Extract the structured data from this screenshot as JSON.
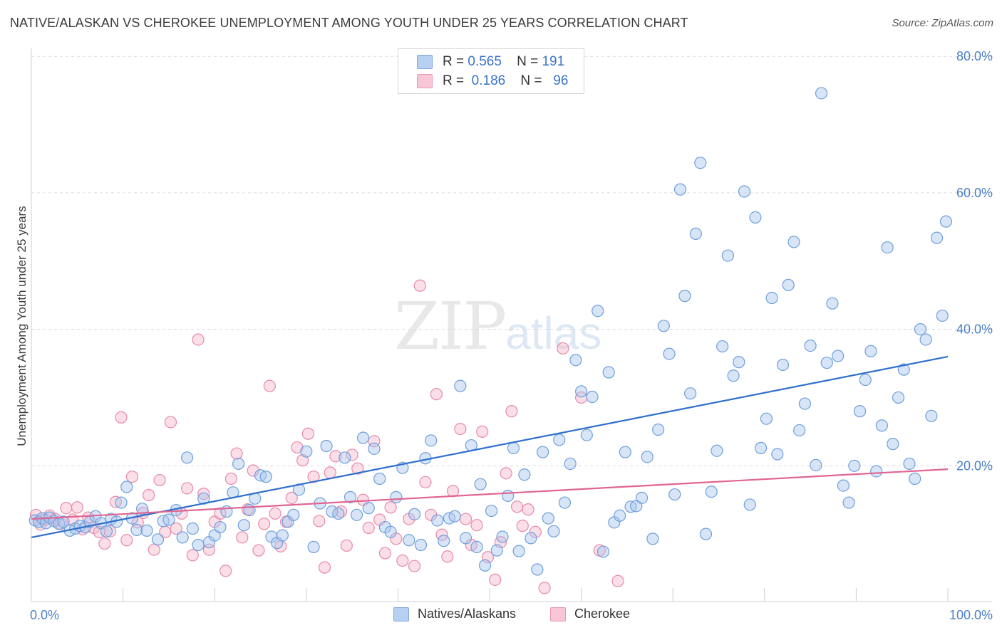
{
  "title": "NATIVE/ALASKAN VS CHEROKEE UNEMPLOYMENT AMONG YOUTH UNDER 25 YEARS CORRELATION CHART",
  "source": "Source: ZipAtlas.com",
  "watermark": {
    "zip": "ZIP",
    "atlas": "atlas"
  },
  "legend": {
    "rows": [
      {
        "r_label": "R =",
        "r_value": "0.565",
        "n_label": "N =",
        "n_value": "191"
      },
      {
        "r_label": "R =",
        "r_value": "0.186",
        "n_label": "N =",
        "n_value": "96"
      }
    ]
  },
  "bottom_legend": {
    "blue": "Natives/Alaskans",
    "pink": "Cherokee"
  },
  "colors": {
    "blue_fill": "#a9c6ee",
    "blue_stroke": "#6f9fdc",
    "blue_line": "#2f6fcc",
    "pink_fill": "#f5b8cc",
    "pink_stroke": "#e889aa",
    "pink_line": "#e06591",
    "tick_text": "#4a7fc8"
  },
  "chart_data": {
    "type": "scatter",
    "title": "NATIVE/ALASKAN VS CHEROKEE UNEMPLOYMENT AMONG YOUTH UNDER 25 YEARS CORRELATION CHART",
    "xlabel": "",
    "ylabel": "Unemployment Among Youth under 25 years",
    "xlim": [
      0,
      100
    ],
    "ylim": [
      0,
      80
    ],
    "grid": "horizontal dashed",
    "x_tick_labels": [
      {
        "value": 0,
        "label": "0.0%"
      },
      {
        "value": 100,
        "label": "100.0%"
      }
    ],
    "y_tick_labels": [
      {
        "value": 20,
        "label": "20.0%"
      },
      {
        "value": 40,
        "label": "40.0%"
      },
      {
        "value": 60,
        "label": "60.0%"
      },
      {
        "value": 80,
        "label": "80.0%"
      }
    ],
    "series": [
      {
        "name": "Natives/Alaskans",
        "trend": {
          "x": [
            0,
            100
          ],
          "y": [
            9.5,
            36.0
          ]
        },
        "points": [
          [
            0.4,
            12.0
          ],
          [
            0.8,
            11.8
          ],
          [
            1.2,
            12.3
          ],
          [
            1.6,
            11.6
          ],
          [
            2.0,
            12.4
          ],
          [
            2.5,
            11.9
          ],
          [
            3.0,
            11.5
          ],
          [
            3.5,
            11.8
          ],
          [
            4.2,
            10.5
          ],
          [
            4.8,
            10.8
          ],
          [
            5.3,
            11.2
          ],
          [
            5.9,
            11.0
          ],
          [
            6.4,
            11.8
          ],
          [
            7.0,
            12.6
          ],
          [
            7.6,
            11.6
          ],
          [
            8.2,
            10.4
          ],
          [
            8.7,
            12.2
          ],
          [
            9.3,
            11.8
          ],
          [
            9.8,
            14.6
          ],
          [
            10.4,
            16.9
          ],
          [
            11.0,
            12.3
          ],
          [
            11.5,
            10.6
          ],
          [
            12.1,
            13.7
          ],
          [
            12.6,
            10.5
          ],
          [
            13.8,
            9.2
          ],
          [
            14.4,
            11.9
          ],
          [
            15.0,
            12.1
          ],
          [
            15.8,
            13.5
          ],
          [
            16.5,
            9.5
          ],
          [
            17.0,
            21.2
          ],
          [
            17.6,
            10.8
          ],
          [
            18.2,
            8.4
          ],
          [
            18.8,
            15.2
          ],
          [
            19.4,
            8.8
          ],
          [
            20.0,
            9.8
          ],
          [
            20.6,
            11.0
          ],
          [
            21.3,
            13.3
          ],
          [
            22.0,
            16.1
          ],
          [
            22.6,
            20.3
          ],
          [
            23.2,
            11.3
          ],
          [
            23.8,
            13.5
          ],
          [
            24.4,
            15.2
          ],
          [
            25.0,
            18.6
          ],
          [
            25.6,
            18.4
          ],
          [
            26.2,
            9.6
          ],
          [
            26.8,
            8.7
          ],
          [
            27.4,
            9.8
          ],
          [
            28.0,
            11.8
          ],
          [
            28.6,
            12.8
          ],
          [
            29.2,
            16.5
          ],
          [
            30.0,
            22.1
          ],
          [
            30.8,
            8.1
          ],
          [
            31.5,
            14.5
          ],
          [
            32.2,
            22.9
          ],
          [
            32.8,
            13.3
          ],
          [
            33.5,
            13.0
          ],
          [
            34.2,
            21.2
          ],
          [
            34.8,
            15.4
          ],
          [
            35.5,
            12.8
          ],
          [
            36.2,
            24.1
          ],
          [
            36.8,
            13.8
          ],
          [
            37.4,
            22.5
          ],
          [
            38.0,
            18.1
          ],
          [
            38.6,
            11.0
          ],
          [
            39.2,
            10.3
          ],
          [
            39.8,
            15.4
          ],
          [
            40.5,
            19.7
          ],
          [
            41.2,
            9.1
          ],
          [
            41.8,
            12.9
          ],
          [
            42.5,
            8.4
          ],
          [
            43.0,
            21.1
          ],
          [
            43.6,
            23.7
          ],
          [
            44.3,
            12.0
          ],
          [
            45.0,
            9.0
          ],
          [
            45.6,
            12.3
          ],
          [
            46.2,
            12.6
          ],
          [
            46.8,
            31.7
          ],
          [
            47.4,
            9.4
          ],
          [
            48.0,
            23.0
          ],
          [
            48.6,
            8.1
          ],
          [
            49.0,
            17.3
          ],
          [
            49.5,
            5.4
          ],
          [
            50.2,
            13.4
          ],
          [
            50.8,
            7.6
          ],
          [
            51.4,
            9.6
          ],
          [
            52.0,
            15.6
          ],
          [
            52.6,
            22.6
          ],
          [
            53.2,
            7.5
          ],
          [
            53.8,
            18.7
          ],
          [
            54.5,
            9.4
          ],
          [
            55.2,
            4.8
          ],
          [
            55.8,
            22.0
          ],
          [
            56.4,
            12.3
          ],
          [
            57.0,
            10.4
          ],
          [
            57.6,
            23.8
          ],
          [
            58.2,
            14.6
          ],
          [
            58.8,
            20.3
          ],
          [
            59.4,
            35.5
          ],
          [
            60.0,
            30.9
          ],
          [
            60.6,
            24.5
          ],
          [
            61.2,
            30.1
          ],
          [
            61.8,
            42.7
          ],
          [
            62.4,
            7.4
          ],
          [
            63.0,
            33.7
          ],
          [
            63.6,
            11.7
          ],
          [
            64.2,
            12.7
          ],
          [
            64.8,
            22.0
          ],
          [
            65.4,
            14.0
          ],
          [
            66.0,
            14.1
          ],
          [
            66.6,
            15.3
          ],
          [
            67.2,
            21.3
          ],
          [
            67.8,
            9.3
          ],
          [
            68.4,
            25.3
          ],
          [
            69.0,
            40.5
          ],
          [
            69.6,
            36.4
          ],
          [
            70.2,
            15.8
          ],
          [
            70.8,
            60.5
          ],
          [
            71.3,
            44.9
          ],
          [
            71.9,
            30.6
          ],
          [
            72.5,
            54.0
          ],
          [
            73.0,
            64.4
          ],
          [
            73.6,
            10.0
          ],
          [
            74.2,
            16.2
          ],
          [
            74.8,
            22.2
          ],
          [
            75.4,
            37.5
          ],
          [
            76.0,
            50.8
          ],
          [
            76.6,
            33.2
          ],
          [
            77.2,
            35.2
          ],
          [
            77.8,
            60.2
          ],
          [
            78.4,
            14.3
          ],
          [
            79.0,
            56.4
          ],
          [
            79.6,
            22.6
          ],
          [
            80.2,
            26.9
          ],
          [
            80.8,
            44.6
          ],
          [
            81.4,
            21.7
          ],
          [
            82.0,
            34.8
          ],
          [
            82.6,
            46.5
          ],
          [
            83.2,
            52.8
          ],
          [
            83.8,
            25.2
          ],
          [
            84.4,
            29.1
          ],
          [
            85.0,
            37.6
          ],
          [
            85.6,
            20.1
          ],
          [
            86.2,
            74.6
          ],
          [
            86.8,
            35.1
          ],
          [
            87.4,
            43.8
          ],
          [
            88.0,
            36.1
          ],
          [
            88.6,
            17.1
          ],
          [
            89.2,
            14.6
          ],
          [
            89.8,
            20.0
          ],
          [
            90.4,
            28.0
          ],
          [
            91.0,
            32.6
          ],
          [
            91.6,
            36.8
          ],
          [
            92.2,
            19.2
          ],
          [
            92.8,
            25.9
          ],
          [
            93.4,
            52.0
          ],
          [
            94.0,
            23.2
          ],
          [
            94.6,
            30.0
          ],
          [
            95.2,
            34.1
          ],
          [
            95.8,
            20.3
          ],
          [
            96.4,
            18.1
          ],
          [
            97.0,
            40.0
          ],
          [
            97.6,
            38.5
          ],
          [
            98.2,
            27.3
          ],
          [
            98.8,
            53.4
          ],
          [
            99.4,
            42.0
          ],
          [
            99.8,
            55.8
          ]
        ]
      },
      {
        "name": "Cherokee",
        "trend": {
          "x": [
            0,
            100
          ],
          "y": [
            12.2,
            19.5
          ]
        },
        "points": [
          [
            0.5,
            12.8
          ],
          [
            1.0,
            11.4
          ],
          [
            1.5,
            12.1
          ],
          [
            2.0,
            12.7
          ],
          [
            2.6,
            12.2
          ],
          [
            3.2,
            11.5
          ],
          [
            3.8,
            13.8
          ],
          [
            4.5,
            12.1
          ],
          [
            5.0,
            13.9
          ],
          [
            5.6,
            10.7
          ],
          [
            6.2,
            12.4
          ],
          [
            6.8,
            10.9
          ],
          [
            7.4,
            10.3
          ],
          [
            8.0,
            8.6
          ],
          [
            8.6,
            10.4
          ],
          [
            9.2,
            14.7
          ],
          [
            9.8,
            27.1
          ],
          [
            10.4,
            9.1
          ],
          [
            11.0,
            18.4
          ],
          [
            11.6,
            11.7
          ],
          [
            12.2,
            13.1
          ],
          [
            12.8,
            15.7
          ],
          [
            13.4,
            7.7
          ],
          [
            14.0,
            17.9
          ],
          [
            14.6,
            10.3
          ],
          [
            15.2,
            26.4
          ],
          [
            15.8,
            10.8
          ],
          [
            16.4,
            13.0
          ],
          [
            17.0,
            16.7
          ],
          [
            17.6,
            6.9
          ],
          [
            18.2,
            38.5
          ],
          [
            18.8,
            15.9
          ],
          [
            19.4,
            7.7
          ],
          [
            20.0,
            11.8
          ],
          [
            20.6,
            13.0
          ],
          [
            21.2,
            4.6
          ],
          [
            21.8,
            18.1
          ],
          [
            22.4,
            21.8
          ],
          [
            23.0,
            9.5
          ],
          [
            23.6,
            13.6
          ],
          [
            24.2,
            19.3
          ],
          [
            24.8,
            7.6
          ],
          [
            25.4,
            11.5
          ],
          [
            26.0,
            31.7
          ],
          [
            26.6,
            13.0
          ],
          [
            27.2,
            8.2
          ],
          [
            27.8,
            11.8
          ],
          [
            28.4,
            15.3
          ],
          [
            29.0,
            22.7
          ],
          [
            29.6,
            20.8
          ],
          [
            30.2,
            24.7
          ],
          [
            30.8,
            18.4
          ],
          [
            31.4,
            11.9
          ],
          [
            32.0,
            5.1
          ],
          [
            32.6,
            19.0
          ],
          [
            33.2,
            21.4
          ],
          [
            33.8,
            13.3
          ],
          [
            34.4,
            8.3
          ],
          [
            35.0,
            21.6
          ],
          [
            35.6,
            19.6
          ],
          [
            36.2,
            15.0
          ],
          [
            36.8,
            10.9
          ],
          [
            37.4,
            23.6
          ],
          [
            38.0,
            12.1
          ],
          [
            38.6,
            7.2
          ],
          [
            39.2,
            13.9
          ],
          [
            39.8,
            9.3
          ],
          [
            40.5,
            6.1
          ],
          [
            41.2,
            12.2
          ],
          [
            41.8,
            5.3
          ],
          [
            42.4,
            46.4
          ],
          [
            43.0,
            17.6
          ],
          [
            43.6,
            12.8
          ],
          [
            44.2,
            30.5
          ],
          [
            44.8,
            9.9
          ],
          [
            45.4,
            6.7
          ],
          [
            46.0,
            16.3
          ],
          [
            46.8,
            25.4
          ],
          [
            47.4,
            12.2
          ],
          [
            48.0,
            8.4
          ],
          [
            48.6,
            11.3
          ],
          [
            49.2,
            25.0
          ],
          [
            49.8,
            6.6
          ],
          [
            50.6,
            3.3
          ],
          [
            51.2,
            8.8
          ],
          [
            51.8,
            18.9
          ],
          [
            52.4,
            28.0
          ],
          [
            53.0,
            14.0
          ],
          [
            53.6,
            11.2
          ],
          [
            54.2,
            13.6
          ],
          [
            55.0,
            10.3
          ],
          [
            56.0,
            2.1
          ],
          [
            58.0,
            37.2
          ],
          [
            60.0,
            30.0
          ],
          [
            62.0,
            7.6
          ],
          [
            64.0,
            3.1
          ]
        ]
      }
    ]
  }
}
